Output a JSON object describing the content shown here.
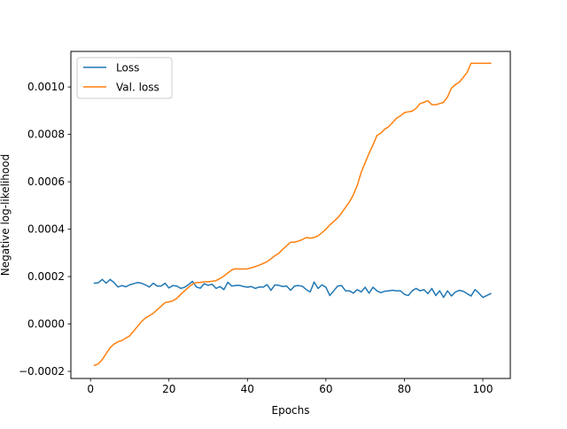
{
  "chart_data": {
    "type": "line",
    "title": "",
    "xlabel": "Epochs",
    "ylabel": "Negative log-likelihood",
    "xlim": [
      -5,
      107
    ],
    "ylim": [
      -0.00023,
      0.00115
    ],
    "xticks": [
      0,
      20,
      40,
      60,
      80,
      100
    ],
    "yticks": [
      -0.0002,
      0.0,
      0.0002,
      0.0004,
      0.0006,
      0.0008,
      0.001
    ],
    "ytick_labels": [
      "−0.0002",
      "0.0000",
      "0.0002",
      "0.0004",
      "0.0006",
      "0.0008",
      "0.0010"
    ],
    "grid": false,
    "legend": "upper-left",
    "x": [
      1,
      2,
      3,
      4,
      5,
      6,
      7,
      8,
      9,
      10,
      11,
      12,
      13,
      14,
      15,
      16,
      17,
      18,
      19,
      20,
      21,
      22,
      23,
      24,
      25,
      26,
      27,
      28,
      29,
      30,
      31,
      32,
      33,
      34,
      35,
      36,
      37,
      38,
      39,
      40,
      41,
      42,
      43,
      44,
      45,
      46,
      47,
      48,
      49,
      50,
      51,
      52,
      53,
      54,
      55,
      56,
      57,
      58,
      59,
      60,
      61,
      62,
      63,
      64,
      65,
      66,
      67,
      68,
      69,
      70,
      71,
      72,
      73,
      74,
      75,
      76,
      77,
      78,
      79,
      80,
      81,
      82,
      83,
      84,
      85,
      86,
      87,
      88,
      89,
      90,
      91,
      92,
      93,
      94,
      95,
      96,
      97,
      98,
      99,
      100,
      101,
      102
    ],
    "series": [
      {
        "name": "Loss",
        "color": "#1f77b4",
        "values": [
          0.000172,
          0.000174,
          0.000188,
          0.000172,
          0.000188,
          0.000175,
          0.000156,
          0.000162,
          0.000157,
          0.000165,
          0.00017,
          0.000175,
          0.000172,
          0.000165,
          0.000156,
          0.000172,
          0.00016,
          0.00016,
          0.000172,
          0.000152,
          0.000162,
          0.00016,
          0.00015,
          0.000155,
          0.000166,
          0.00018,
          0.000156,
          0.000151,
          0.00017,
          0.000163,
          0.000168,
          0.00015,
          0.000158,
          0.000145,
          0.000176,
          0.00016,
          0.000162,
          0.000163,
          0.000158,
          0.000155,
          0.000158,
          0.00015,
          0.000156,
          0.000155,
          0.000166,
          0.000142,
          0.000165,
          0.000163,
          0.000158,
          0.00016,
          0.000142,
          0.00016,
          0.000162,
          0.000159,
          0.000145,
          0.000135,
          0.000177,
          0.00015,
          0.000165,
          0.000155,
          0.00012,
          0.00014,
          0.00016,
          0.000162,
          0.00014,
          0.00014,
          0.00013,
          0.000145,
          0.000135,
          0.000155,
          0.00013,
          0.000155,
          0.00014,
          0.000132,
          0.000138,
          0.00014,
          0.000142,
          0.00014,
          0.00014,
          0.000125,
          0.00012,
          0.00014,
          0.00015,
          0.00014,
          0.000145,
          0.000128,
          0.00015,
          0.00012,
          0.00014,
          0.000112,
          0.00014,
          0.000118,
          0.000135,
          0.000142,
          0.000138,
          0.000128,
          0.000118,
          0.000145,
          0.00013,
          0.000112,
          0.00012,
          0.000128
        ]
      },
      {
        "name": "Val. loss",
        "color": "#ff7f0e",
        "values": [
          -0.000175,
          -0.000168,
          -0.00015,
          -0.000125,
          -0.0001,
          -8.5e-05,
          -7.5e-05,
          -7e-05,
          -6e-05,
          -5e-05,
          -3e-05,
          -1e-05,
          1e-05,
          2.5e-05,
          3.5e-05,
          4.5e-05,
          6e-05,
          7.5e-05,
          9e-05,
          9.3e-05,
          9.8e-05,
          0.000108,
          0.000125,
          0.00014,
          0.000155,
          0.000168,
          0.000175,
          0.000175,
          0.000178,
          0.000178,
          0.00018,
          0.000183,
          0.000192,
          0.000202,
          0.000215,
          0.000228,
          0.000233,
          0.000232,
          0.000232,
          0.000233,
          0.000237,
          0.000242,
          0.000248,
          0.000255,
          0.000263,
          0.000275,
          0.000288,
          0.000298,
          0.000315,
          0.00033,
          0.000345,
          0.000345,
          0.00035,
          0.000356,
          0.000365,
          0.000362,
          0.000365,
          0.000372,
          0.000385,
          0.0004,
          0.000418,
          0.000432,
          0.000448,
          0.000468,
          0.000492,
          0.000515,
          0.000545,
          0.000585,
          0.00064,
          0.00068,
          0.00072,
          0.000755,
          0.000795,
          0.000805,
          0.000822,
          0.000832,
          0.00085,
          0.000868,
          0.000878,
          0.000892,
          0.000895,
          0.000898,
          0.00091,
          0.00093,
          0.000935,
          0.000942,
          0.000925,
          0.000925,
          0.00093,
          0.000935,
          0.000958,
          0.000995,
          0.00101,
          0.00102,
          0.00104,
          0.001062,
          0.0011,
          0.0011,
          0.0011,
          0.0011,
          0.0011,
          0.0011
        ]
      }
    ]
  }
}
